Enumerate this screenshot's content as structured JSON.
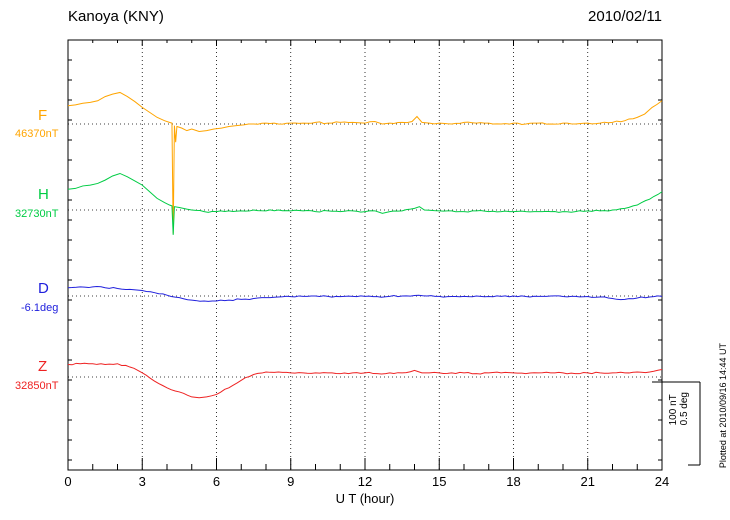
{
  "header": {
    "title": "Kanoya (KNY)",
    "date": "2010/02/11"
  },
  "footer_note": "Plotted at 2010/09/16 14:44 UT",
  "chart_data": {
    "type": "line",
    "title": "Kanoya (KNY)",
    "date": "2010/02/11",
    "xlabel": "U T (hour)",
    "xlim": [
      0,
      24
    ],
    "x_ticks": [
      0,
      3,
      6,
      9,
      12,
      15,
      18,
      21,
      24
    ],
    "grid": "dotted vertical lines at 3h intervals, dotted horizontal baseline per channel",
    "scale_bar": {
      "labels": [
        "100 nT",
        "0.5 deg"
      ],
      "nT": 100,
      "deg": 0.5
    },
    "series": [
      {
        "id": "F",
        "label": "F",
        "baseline_label": "46370nT",
        "baseline_value": 46370,
        "unit": "nT",
        "color": "#ffa500",
        "points": [
          [
            0,
            22
          ],
          [
            0.3,
            23
          ],
          [
            0.6,
            25
          ],
          [
            0.9,
            26
          ],
          [
            1.2,
            28
          ],
          [
            1.5,
            33
          ],
          [
            1.8,
            36
          ],
          [
            2.1,
            38
          ],
          [
            2.4,
            33
          ],
          [
            2.7,
            27
          ],
          [
            3,
            20
          ],
          [
            3.3,
            14
          ],
          [
            3.6,
            8
          ],
          [
            3.9,
            4
          ],
          [
            4.1,
            2
          ],
          [
            4.2,
            1
          ],
          [
            4.25,
            -132
          ],
          [
            4.3,
            -2
          ],
          [
            4.35,
            -22
          ],
          [
            4.4,
            -3
          ],
          [
            4.6,
            -5
          ],
          [
            4.8,
            -8
          ],
          [
            5,
            -6
          ],
          [
            5.3,
            -9
          ],
          [
            5.6,
            -8
          ],
          [
            5.9,
            -6
          ],
          [
            6.2,
            -5
          ],
          [
            6.5,
            -3
          ],
          [
            6.8,
            -2
          ],
          [
            7.1,
            -1
          ],
          [
            7.5,
            0
          ],
          [
            8,
            1
          ],
          [
            8.5,
            0
          ],
          [
            9,
            1
          ],
          [
            9.5,
            1
          ],
          [
            10,
            2
          ],
          [
            10.5,
            1
          ],
          [
            11,
            2
          ],
          [
            11.5,
            2
          ],
          [
            12,
            1
          ],
          [
            12.4,
            3
          ],
          [
            12.7,
            0
          ],
          [
            13,
            1
          ],
          [
            13.5,
            2
          ],
          [
            13.9,
            3
          ],
          [
            14.1,
            9
          ],
          [
            14.3,
            2
          ],
          [
            14.6,
            1
          ],
          [
            15,
            1
          ],
          [
            15.5,
            0
          ],
          [
            16,
            2
          ],
          [
            16.5,
            1
          ],
          [
            17,
            1
          ],
          [
            17.5,
            0
          ],
          [
            18,
            1
          ],
          [
            18.5,
            0
          ],
          [
            19,
            1
          ],
          [
            19.5,
            0
          ],
          [
            20,
            1
          ],
          [
            20.5,
            0
          ],
          [
            21,
            1
          ],
          [
            21.5,
            1
          ],
          [
            22,
            2
          ],
          [
            22.5,
            4
          ],
          [
            23,
            8
          ],
          [
            23.3,
            12
          ],
          [
            23.6,
            20
          ],
          [
            24,
            28
          ]
        ]
      },
      {
        "id": "H",
        "label": "H",
        "baseline_label": "32730nT",
        "baseline_value": 32730,
        "unit": "nT",
        "color": "#00cc44",
        "points": [
          [
            0,
            25
          ],
          [
            0.3,
            26
          ],
          [
            0.6,
            29
          ],
          [
            0.9,
            30
          ],
          [
            1.2,
            32
          ],
          [
            1.5,
            36
          ],
          [
            1.8,
            41
          ],
          [
            2.1,
            44
          ],
          [
            2.4,
            40
          ],
          [
            2.7,
            35
          ],
          [
            3,
            30
          ],
          [
            3.3,
            22
          ],
          [
            3.6,
            14
          ],
          [
            3.9,
            9
          ],
          [
            4.1,
            6
          ],
          [
            4.2,
            5
          ],
          [
            4.25,
            -30
          ],
          [
            4.3,
            4
          ],
          [
            4.5,
            3
          ],
          [
            4.8,
            1
          ],
          [
            5,
            0
          ],
          [
            5.5,
            -2
          ],
          [
            6,
            -2
          ],
          [
            6.5,
            -1
          ],
          [
            7,
            -1
          ],
          [
            7.5,
            0
          ],
          [
            8,
            -1
          ],
          [
            8.5,
            0
          ],
          [
            9,
            -1
          ],
          [
            9.5,
            -1
          ],
          [
            10,
            -2
          ],
          [
            10.5,
            -1
          ],
          [
            11,
            -2
          ],
          [
            11.5,
            -1
          ],
          [
            12,
            -2
          ],
          [
            12.4,
            -1
          ],
          [
            12.7,
            -4
          ],
          [
            13,
            -2
          ],
          [
            13.5,
            -1
          ],
          [
            14,
            2
          ],
          [
            14.2,
            4
          ],
          [
            14.4,
            0
          ],
          [
            15,
            -1
          ],
          [
            15.5,
            -1
          ],
          [
            16,
            -2
          ],
          [
            16.5,
            -1
          ],
          [
            17,
            -2
          ],
          [
            17.5,
            -2
          ],
          [
            18,
            -2
          ],
          [
            18.5,
            -2
          ],
          [
            19,
            -2
          ],
          [
            19.5,
            -2
          ],
          [
            20,
            -2
          ],
          [
            20.5,
            -2
          ],
          [
            21,
            -1
          ],
          [
            21.5,
            -1
          ],
          [
            22,
            0
          ],
          [
            22.5,
            2
          ],
          [
            23,
            6
          ],
          [
            23.5,
            13
          ],
          [
            24,
            22
          ]
        ]
      },
      {
        "id": "D",
        "label": "D",
        "baseline_label": "-6.1deg",
        "baseline_value": -6.1,
        "unit": "deg",
        "color": "#2020dd",
        "points": [
          [
            0,
            0.05
          ],
          [
            0.5,
            0.055
          ],
          [
            1,
            0.055
          ],
          [
            1.5,
            0.05
          ],
          [
            2,
            0.045
          ],
          [
            2.5,
            0.04
          ],
          [
            3,
            0.033
          ],
          [
            3.5,
            0.02
          ],
          [
            4,
            0.005
          ],
          [
            4.5,
            -0.01
          ],
          [
            5,
            -0.025
          ],
          [
            5.5,
            -0.03
          ],
          [
            6,
            -0.03
          ],
          [
            6.5,
            -0.025
          ],
          [
            7,
            -0.02
          ],
          [
            7.5,
            -0.015
          ],
          [
            8,
            -0.01
          ],
          [
            8.5,
            -0.006
          ],
          [
            9,
            -0.004
          ],
          [
            9.5,
            -0.002
          ],
          [
            10,
            0
          ],
          [
            10.5,
            -0.002
          ],
          [
            11,
            -0.004
          ],
          [
            11.5,
            -0.002
          ],
          [
            12,
            -0.002
          ],
          [
            12.5,
            -0.004
          ],
          [
            13,
            -0.002
          ],
          [
            13.5,
            0
          ],
          [
            14,
            0.003
          ],
          [
            14.5,
            0
          ],
          [
            15,
            -0.002
          ],
          [
            15.5,
            -0.003
          ],
          [
            16,
            -0.002
          ],
          [
            16.5,
            0
          ],
          [
            17,
            -0.003
          ],
          [
            17.5,
            -0.002
          ],
          [
            18,
            0
          ],
          [
            18.5,
            -0.003
          ],
          [
            19,
            -0.002
          ],
          [
            19.5,
            0
          ],
          [
            20,
            -0.003
          ],
          [
            20.5,
            -0.002
          ],
          [
            21,
            -0.003
          ],
          [
            21.5,
            -0.006
          ],
          [
            22,
            -0.015
          ],
          [
            22.5,
            -0.02
          ],
          [
            23,
            -0.012
          ],
          [
            23.5,
            -0.006
          ],
          [
            24,
            -0.002
          ]
        ]
      },
      {
        "id": "Z",
        "label": "Z",
        "baseline_label": "32850nT",
        "baseline_value": 32850,
        "unit": "nT",
        "color": "#ee2222",
        "points": [
          [
            0,
            15
          ],
          [
            0.5,
            16
          ],
          [
            1,
            16
          ],
          [
            1.5,
            15
          ],
          [
            2,
            16
          ],
          [
            2.5,
            12
          ],
          [
            3,
            5
          ],
          [
            3.5,
            -5
          ],
          [
            4,
            -13
          ],
          [
            4.5,
            -18
          ],
          [
            5,
            -24
          ],
          [
            5.3,
            -25
          ],
          [
            5.6,
            -24
          ],
          [
            6,
            -21
          ],
          [
            6.5,
            -13
          ],
          [
            7,
            -4
          ],
          [
            7.5,
            3
          ],
          [
            8,
            6
          ],
          [
            8.5,
            6
          ],
          [
            9,
            5
          ],
          [
            9.5,
            5
          ],
          [
            10,
            5
          ],
          [
            10.5,
            5
          ],
          [
            11,
            4
          ],
          [
            11.5,
            5
          ],
          [
            12,
            5
          ],
          [
            12.5,
            4
          ],
          [
            13,
            5
          ],
          [
            13.5,
            5
          ],
          [
            14,
            8
          ],
          [
            14.3,
            5
          ],
          [
            14.6,
            5
          ],
          [
            15,
            5
          ],
          [
            15.5,
            5
          ],
          [
            16,
            5
          ],
          [
            16.5,
            4
          ],
          [
            17,
            5
          ],
          [
            17.5,
            5
          ],
          [
            18,
            5
          ],
          [
            18.5,
            4
          ],
          [
            19,
            5
          ],
          [
            19.5,
            5
          ],
          [
            20,
            5
          ],
          [
            20.5,
            4
          ],
          [
            21,
            5
          ],
          [
            21.5,
            5
          ],
          [
            22,
            5
          ],
          [
            22.5,
            5
          ],
          [
            23,
            6
          ],
          [
            23.5,
            6
          ],
          [
            24,
            9
          ]
        ]
      }
    ]
  }
}
